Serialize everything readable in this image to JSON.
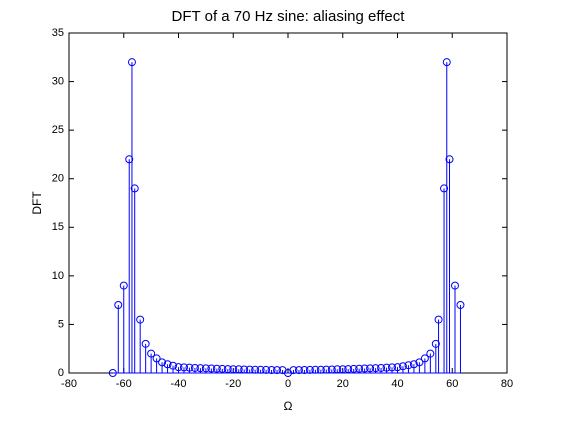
{
  "chart_data": {
    "type": "stem",
    "title": "DFT of a 70 Hz sine: aliasing effect",
    "xlabel": "Ω",
    "ylabel": "DFT",
    "color": "#0000ff",
    "x": [
      -64,
      -62,
      -60,
      -58,
      -57,
      -56,
      -54,
      -52,
      -50,
      -48,
      -46,
      -44,
      -42,
      -40,
      -38,
      -36,
      -34,
      -32,
      -30,
      -28,
      -26,
      -24,
      -22,
      -20,
      -18,
      -16,
      -14,
      -12,
      -10,
      -8,
      -6,
      -4,
      -2,
      0,
      2,
      4,
      6,
      8,
      10,
      12,
      14,
      16,
      18,
      20,
      22,
      24,
      26,
      28,
      30,
      32,
      34,
      36,
      38,
      40,
      42,
      44,
      46,
      48,
      50,
      52,
      54,
      55,
      57,
      58,
      59,
      61,
      63
    ],
    "values": [
      0,
      7,
      9,
      22,
      32,
      19,
      5.5,
      3,
      2,
      1.5,
      1.1,
      0.9,
      0.75,
      0.6,
      0.58,
      0.55,
      0.52,
      0.5,
      0.48,
      0.46,
      0.44,
      0.42,
      0.4,
      0.39,
      0.38,
      0.36,
      0.35,
      0.34,
      0.33,
      0.32,
      0.31,
      0.3,
      0.3,
      0,
      0.3,
      0.3,
      0.31,
      0.32,
      0.33,
      0.34,
      0.35,
      0.36,
      0.38,
      0.39,
      0.4,
      0.42,
      0.44,
      0.46,
      0.48,
      0.5,
      0.52,
      0.55,
      0.58,
      0.6,
      0.7,
      0.8,
      0.9,
      1.1,
      1.5,
      2,
      3,
      5.5,
      19,
      32,
      22,
      9,
      7
    ],
    "xlim": [
      -80,
      80
    ],
    "xticks": [
      -80,
      -60,
      -40,
      -20,
      0,
      20,
      40,
      60,
      80
    ],
    "ylim": [
      0,
      35
    ],
    "yticks": [
      0,
      5,
      10,
      15,
      20,
      25,
      30,
      35
    ]
  }
}
